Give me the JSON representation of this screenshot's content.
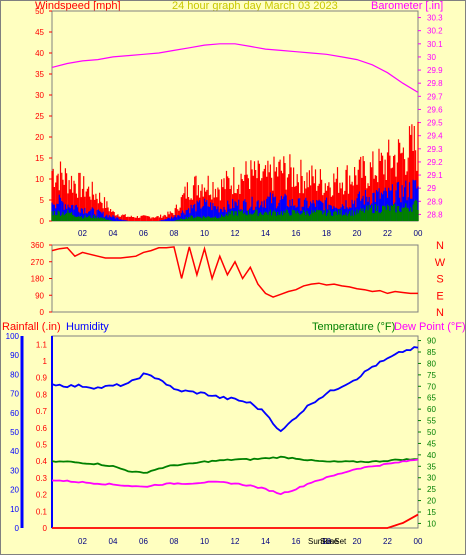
{
  "header": {
    "title": "24 hour graph day  March 03 2023",
    "left_label": "Windspeed [mph]",
    "right_label": "Barometer [.in]"
  },
  "lower_header": {
    "rain_label": "Rainfall (.in)",
    "humidity_label": "Humidity",
    "temp_label": "Temperature (°F)",
    "dew_label": "Dew Point (°F)"
  },
  "sun_labels": [
    "SunRise",
    "SunSet"
  ],
  "colors": {
    "background": "#ffffc0",
    "wind_gust": "#ff0000",
    "wind_avg": "#0000ff",
    "wind_low": "#008000",
    "barometer": "#ff00ff",
    "direction": "#ff0000",
    "humidity": "#0000ff",
    "temperature": "#008000",
    "dewpoint": "#ff00ff",
    "rainfall": "#ff0000"
  },
  "chart_data": [
    {
      "type": "line",
      "x_ticks": [
        "02",
        "04",
        "06",
        "08",
        "10",
        "12",
        "14",
        "16",
        "18",
        "20",
        "22",
        "00"
      ],
      "wind_ticks": [
        0,
        5,
        10,
        15,
        20,
        25,
        30,
        35,
        40,
        45,
        50
      ],
      "baro_ticks": [
        "28.8",
        "28.9",
        "29",
        "29.1",
        "29.2",
        "29.3",
        "29.4",
        "29.5",
        "29.6",
        "29.7",
        "29.8",
        "29.9",
        "30",
        "30.1",
        "30.2",
        "30.3"
      ],
      "wind_ylim": [
        0,
        50
      ],
      "baro_ylim": [
        28.75,
        30.35
      ],
      "x": [
        0,
        1,
        2,
        3,
        4,
        5,
        6,
        7,
        8,
        9,
        10,
        11,
        12,
        13,
        14,
        15,
        16,
        17,
        18,
        19,
        20,
        21,
        22,
        23,
        24
      ],
      "series": [
        {
          "key": "barometer",
          "values": [
            29.92,
            29.95,
            29.97,
            29.98,
            30.0,
            30.01,
            30.02,
            30.03,
            30.05,
            30.07,
            30.09,
            30.1,
            30.1,
            30.08,
            30.06,
            30.05,
            30.04,
            30.03,
            30.02,
            30.0,
            29.98,
            29.94,
            29.88,
            29.8,
            29.73
          ]
        },
        {
          "key": "gust",
          "values": [
            12,
            10,
            8,
            6,
            2,
            1,
            1,
            1,
            2,
            8,
            9,
            8,
            10,
            11,
            10,
            12,
            11,
            10,
            9,
            10,
            11,
            12,
            14,
            16,
            18
          ]
        },
        {
          "key": "avg",
          "values": [
            5,
            4,
            3,
            2,
            1,
            0,
            0,
            0,
            1,
            3,
            4,
            3,
            4,
            4,
            5,
            5,
            4,
            4,
            4,
            4,
            5,
            6,
            6,
            7,
            8
          ]
        },
        {
          "key": "low",
          "values": [
            2,
            2,
            1,
            1,
            0,
            0,
            0,
            0,
            0,
            1,
            1,
            1,
            2,
            2,
            2,
            2,
            2,
            2,
            2,
            2,
            2,
            3,
            3,
            3,
            4
          ]
        }
      ]
    },
    {
      "type": "line",
      "x_ticks": [
        "02",
        "04",
        "06",
        "08",
        "10",
        "12",
        "14",
        "16",
        "18",
        "20",
        "22",
        "00"
      ],
      "y_ticks": [
        0,
        90,
        180,
        270,
        360
      ],
      "ylim": [
        0,
        360
      ],
      "compass": [
        "N",
        "W",
        "S",
        "E",
        "N"
      ],
      "series": [
        {
          "key": "direction",
          "x": [
            0,
            0.5,
            1,
            1.5,
            2,
            2.5,
            3,
            3.5,
            4,
            4.5,
            5,
            5.5,
            6,
            6.5,
            7,
            7.5,
            8,
            8.5,
            9,
            9.5,
            10,
            10.5,
            11,
            11.5,
            12,
            12.5,
            13,
            13.5,
            14,
            14.5,
            15,
            15.5,
            16,
            16.5,
            17,
            17.5,
            18,
            18.5,
            19,
            19.5,
            20,
            20.5,
            21,
            21.5,
            22,
            22.5,
            23,
            23.5,
            24
          ],
          "values": [
            330,
            340,
            345,
            300,
            320,
            310,
            300,
            290,
            290,
            290,
            295,
            300,
            320,
            330,
            345,
            345,
            350,
            180,
            350,
            200,
            340,
            180,
            300,
            200,
            270,
            180,
            240,
            150,
            100,
            80,
            95,
            110,
            120,
            140,
            150,
            155,
            145,
            150,
            140,
            135,
            125,
            120,
            110,
            115,
            100,
            110,
            105,
            100,
            100
          ]
        }
      ]
    },
    {
      "type": "line",
      "x_ticks": [
        "02",
        "04",
        "06",
        "08",
        "10",
        "12",
        "14",
        "16",
        "18",
        "20",
        "22",
        "00"
      ],
      "rain_ticks": [
        "0",
        "0.1",
        "0.2",
        "0.3",
        "0.4",
        "0.5",
        "0.6",
        "0.7",
        "0.8",
        "0.9",
        "1",
        "1.1"
      ],
      "hum_ticks": [
        0,
        10,
        20,
        30,
        40,
        50,
        60,
        70,
        80,
        90,
        100
      ],
      "temp_ticks": [
        10,
        15,
        20,
        25,
        30,
        35,
        40,
        45,
        50,
        55,
        60,
        65,
        70,
        75,
        80,
        85,
        90
      ],
      "rain_ylim": [
        0,
        1.15
      ],
      "hum_ylim": [
        0,
        100
      ],
      "temp_ylim": [
        8,
        92
      ],
      "x": [
        0,
        1,
        2,
        3,
        4,
        5,
        6,
        7,
        8,
        9,
        10,
        11,
        12,
        13,
        14,
        15,
        16,
        17,
        18,
        19,
        20,
        21,
        22,
        23,
        24
      ],
      "series": [
        {
          "key": "humidity",
          "values": [
            75,
            74,
            74,
            73,
            74,
            75,
            80,
            78,
            72,
            71,
            70,
            68,
            67,
            65,
            60,
            50,
            58,
            65,
            70,
            74,
            78,
            84,
            88,
            92,
            94
          ]
        },
        {
          "key": "temperature",
          "values": [
            37,
            37,
            36.5,
            36,
            35,
            33,
            32,
            34,
            35.5,
            36,
            37,
            37.5,
            38,
            38,
            38.5,
            39,
            38.5,
            37.5,
            37,
            37,
            37,
            37,
            37.5,
            38,
            38
          ]
        },
        {
          "key": "dewpoint",
          "values": [
            29,
            28.5,
            28,
            27.5,
            27,
            26.5,
            26,
            27,
            27.5,
            27.5,
            28,
            28,
            27.5,
            26.5,
            25,
            23,
            25,
            28,
            30,
            32,
            34,
            35,
            36,
            37,
            38
          ]
        },
        {
          "key": "rainfall",
          "values": [
            0,
            0,
            0,
            0,
            0,
            0,
            0,
            0,
            0,
            0,
            0,
            0,
            0,
            0,
            0,
            0,
            0,
            0,
            0,
            0,
            0,
            0,
            0,
            0.03,
            0.08
          ]
        }
      ]
    }
  ]
}
